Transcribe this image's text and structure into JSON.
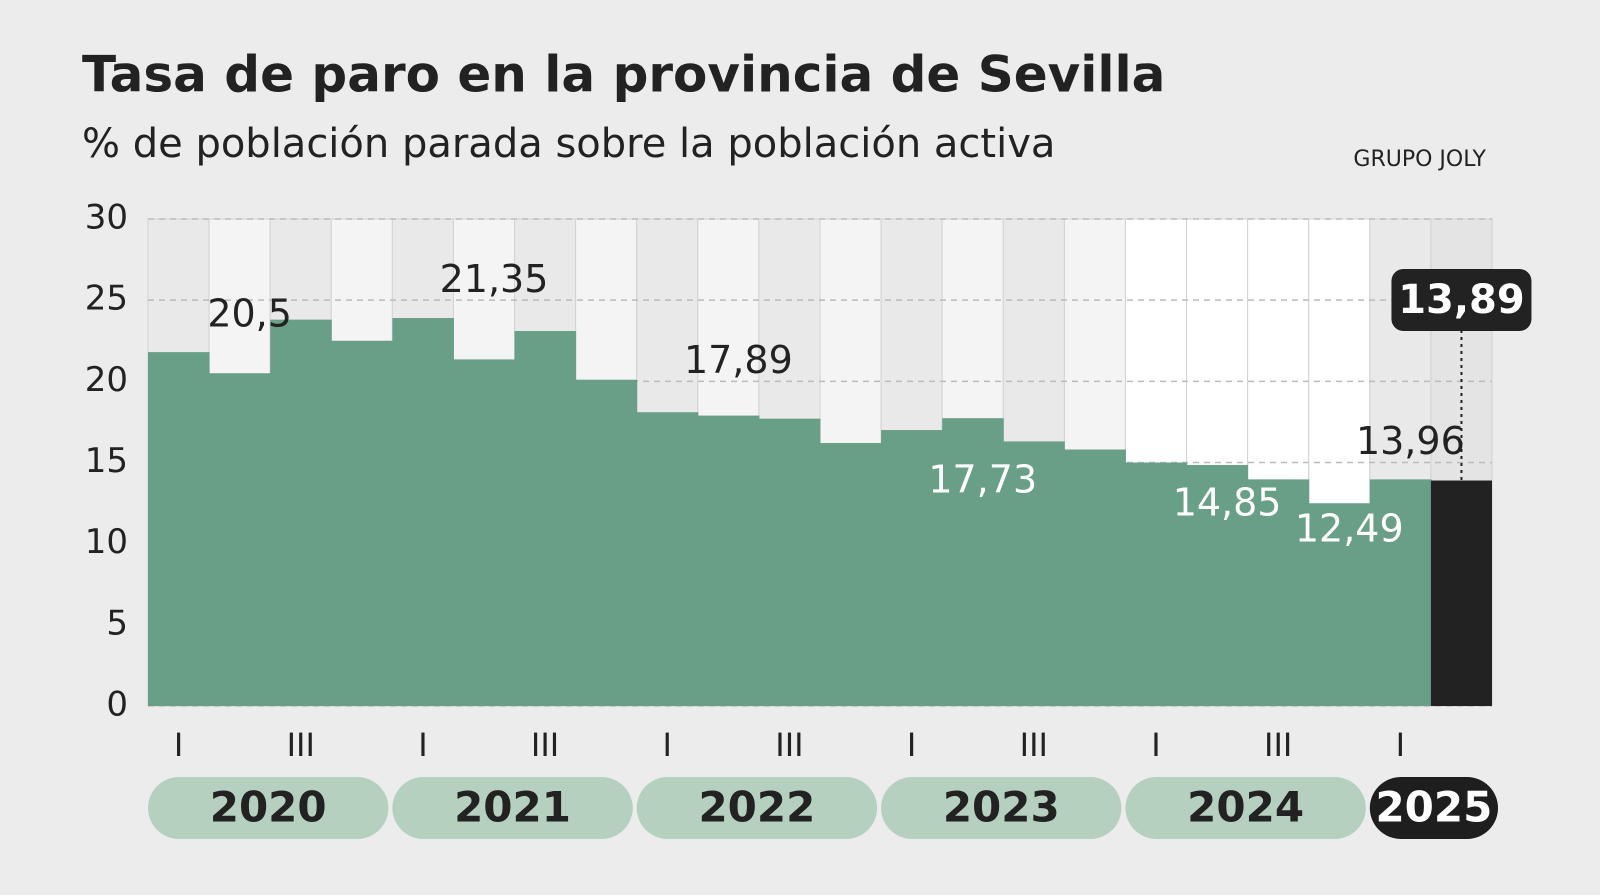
{
  "chart_data": {
    "type": "bar",
    "title": "Tasa de paro en la provincia de Sevilla",
    "subtitle": "% de población parada sobre la población activa",
    "source": "GRUPO JOLY",
    "categories": [
      "I",
      null,
      "III",
      null,
      "I",
      null,
      "III",
      null,
      "I",
      null,
      "III",
      null,
      "I",
      null,
      "III",
      null,
      "I",
      null,
      "III",
      null,
      "I",
      null
    ],
    "years": [
      "2020",
      "2021",
      "2022",
      "2023",
      "2024",
      "2025"
    ],
    "values": [
      21.8,
      20.5,
      23.8,
      22.5,
      23.9,
      21.35,
      23.1,
      20.1,
      18.1,
      17.89,
      17.7,
      16.2,
      17.0,
      17.73,
      16.3,
      15.8,
      15.0,
      14.85,
      13.96,
      12.49,
      13.96,
      13.89
    ],
    "value_labels": [
      null,
      "20,5",
      null,
      null,
      null,
      "21,35",
      null,
      null,
      null,
      "17,89",
      null,
      null,
      null,
      "17,73",
      null,
      null,
      null,
      "14,85",
      null,
      "12,49",
      "13,96",
      "13,89"
    ],
    "color": "#6a9f87",
    "highlight_color": "#222222",
    "ylim": [
      0,
      30
    ],
    "yticks": [
      0,
      5,
      10,
      15,
      20,
      25,
      30
    ],
    "grid": true
  }
}
